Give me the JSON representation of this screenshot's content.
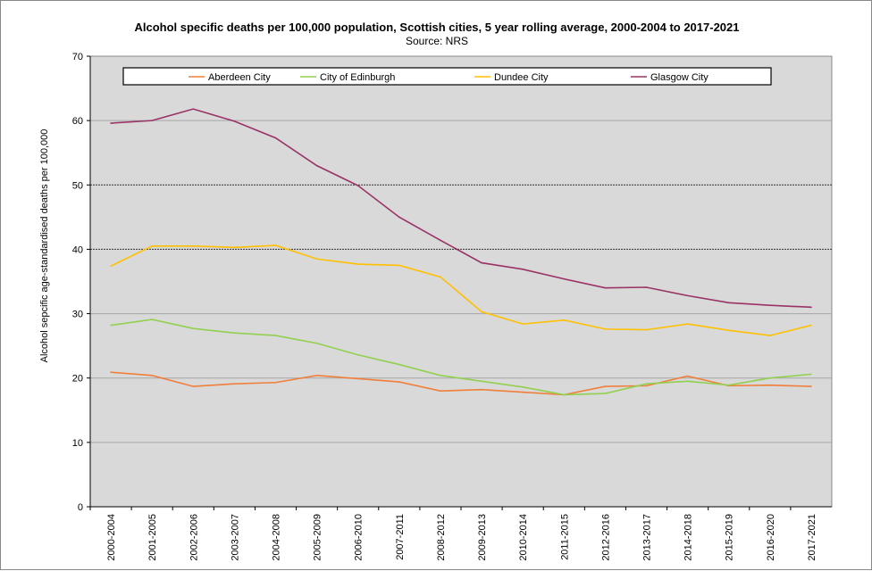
{
  "chart_data": {
    "type": "line",
    "title": "Alcohol specific deaths per 100,000 population, Scottish cities, 5 year rolling average, 2000-2004 to 2017-2021",
    "subtitle": "Source: NRS",
    "xlabel": "",
    "ylabel": "Alcohol sepcific age-standardised deaths per 100,000",
    "ylim": [
      0,
      70
    ],
    "yticks": [
      0,
      10,
      20,
      30,
      40,
      50,
      60,
      70
    ],
    "grid": true,
    "legend": "top",
    "categories": [
      "2000-2004",
      "2001-2005",
      "2002-2006",
      "2003-2007",
      "2004-2008",
      "2005-2009",
      "2006-2010",
      "2007-2011",
      "2008-2012",
      "2009-2013",
      "2010-2014",
      "2011-2015",
      "2012-2016",
      "2013-2017",
      "2014-2018",
      "2015-2019",
      "2016-2020",
      "2017-2021"
    ],
    "series": [
      {
        "name": "Aberdeen City",
        "color": "#f07f3c",
        "values": [
          20.9,
          20.4,
          18.7,
          19.1,
          19.3,
          20.4,
          19.9,
          19.4,
          18.0,
          18.2,
          17.8,
          17.4,
          18.7,
          18.8,
          20.3,
          18.8,
          18.9,
          18.7
        ]
      },
      {
        "name": "City of Edinburgh",
        "color": "#92d050",
        "values": [
          28.2,
          29.1,
          27.7,
          27.0,
          26.6,
          25.4,
          23.6,
          22.1,
          20.4,
          19.5,
          18.6,
          17.4,
          17.6,
          19.1,
          19.5,
          18.9,
          20.0,
          20.6
        ]
      },
      {
        "name": "Dundee City",
        "color": "#ffc000",
        "values": [
          37.4,
          40.5,
          40.5,
          40.3,
          40.6,
          38.5,
          37.7,
          37.5,
          35.7,
          30.3,
          28.4,
          29.0,
          27.6,
          27.5,
          28.4,
          27.4,
          26.6,
          28.2
        ]
      },
      {
        "name": "Glasgow City",
        "color": "#993366",
        "values": [
          59.6,
          60.0,
          61.8,
          59.9,
          57.3,
          53.0,
          49.9,
          45.0,
          41.4,
          37.9,
          36.9,
          35.4,
          34.0,
          34.1,
          32.8,
          31.7,
          31.3,
          31.0
        ]
      }
    ]
  }
}
